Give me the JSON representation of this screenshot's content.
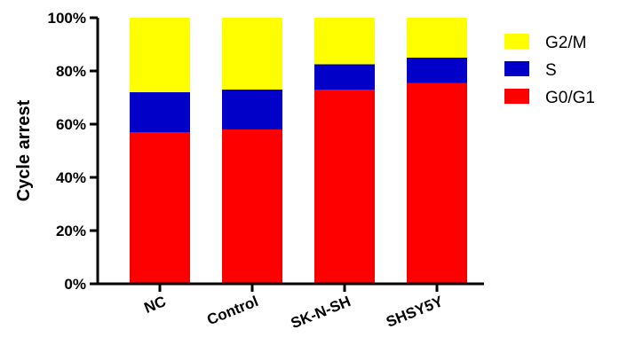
{
  "chart_data": {
    "type": "bar",
    "stacked": true,
    "title": "",
    "xlabel": "",
    "ylabel": "Cycle arrest",
    "ylim": [
      0,
      100
    ],
    "yticks": [
      0,
      20,
      40,
      60,
      80,
      100
    ],
    "ytick_suffix": "%",
    "categories": [
      "NC",
      "Control",
      "SK-N-SH",
      "SHSY5Y"
    ],
    "series": [
      {
        "name": "G0/G1",
        "color": "#ff0000",
        "values": [
          57,
          58,
          73,
          75.5
        ]
      },
      {
        "name": "S",
        "color": "#0000c8",
        "values": [
          15,
          15,
          9.5,
          9.5
        ]
      },
      {
        "name": "G2/M",
        "color": "#ffff00",
        "values": [
          28,
          27,
          17.5,
          15
        ]
      }
    ],
    "legend": {
      "position": "top-right",
      "order": [
        "G2/M",
        "S",
        "G0/G1"
      ]
    },
    "grid": false
  }
}
